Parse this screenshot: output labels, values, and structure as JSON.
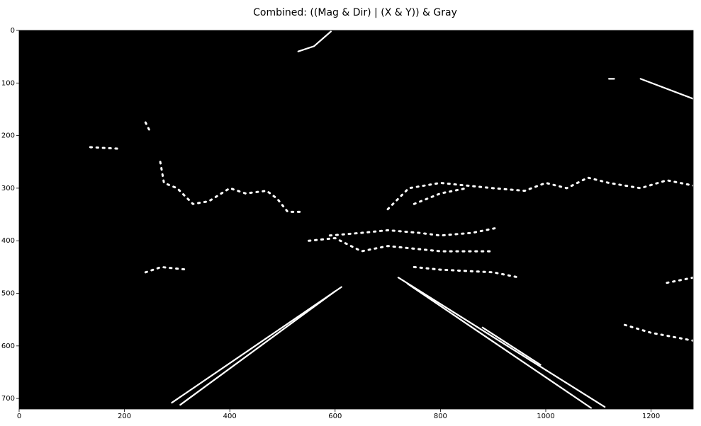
{
  "chart_data": {
    "type": "image",
    "title": "Combined: ((Mag & Dir) | (X & Y)) & Gray",
    "xlim": [
      0,
      1280
    ],
    "ylim": [
      720,
      0
    ],
    "xticks": [
      0,
      200,
      400,
      600,
      800,
      1000,
      1200
    ],
    "yticks": [
      0,
      100,
      200,
      300,
      400,
      500,
      600,
      700
    ]
  }
}
